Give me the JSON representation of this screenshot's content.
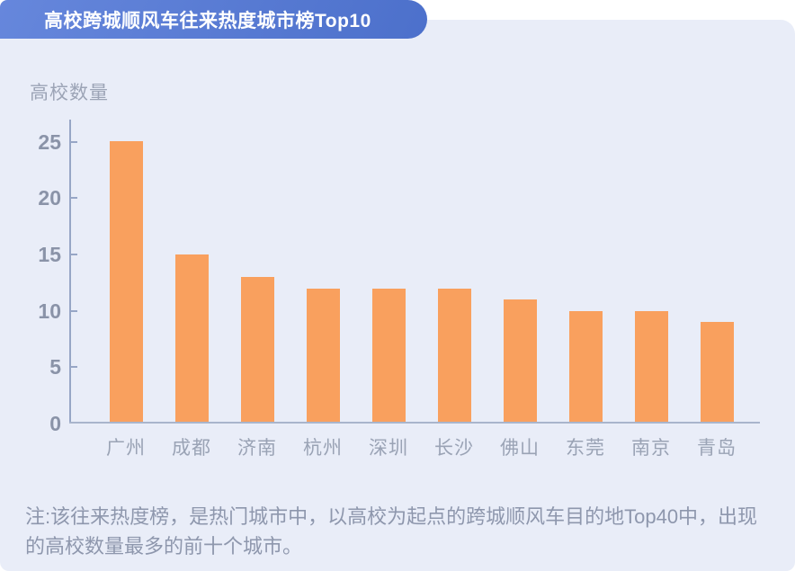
{
  "page": {
    "background": "#FFFFFF",
    "card_background": "#E9EDF8"
  },
  "header": {
    "title": "高校跨城顺风车往来热度城市榜Top10",
    "title_color": "#FFFFFF",
    "banner_gradient_start": "#6687DC",
    "banner_gradient_end": "#4C70CB"
  },
  "chart_data": {
    "type": "bar",
    "title": "高校跨城顺风车往来热度城市榜Top10",
    "ylabel": "高校数量",
    "xlabel": "",
    "categories": [
      "广州",
      "成都",
      "济南",
      "杭州",
      "深圳",
      "长沙",
      "佛山",
      "东莞",
      "南京",
      "青岛"
    ],
    "values": [
      25,
      15,
      13,
      12,
      12,
      12,
      11,
      10,
      10,
      9
    ],
    "yticks": [
      0,
      5,
      10,
      15,
      20,
      25
    ],
    "ylim": [
      0,
      27
    ],
    "grid": false,
    "legend": "none",
    "bar_color": "#F9A05E",
    "axis_color": "#97A6C6",
    "tick_label_color": "#8A93A8",
    "category_label_color": "#9AA3B5"
  },
  "note": {
    "text": "注:该往来热度榜，是热门城市中，以高校为起点的跨城顺风车目的地Top40中，出现的高校数量最多的前十个城市。"
  }
}
